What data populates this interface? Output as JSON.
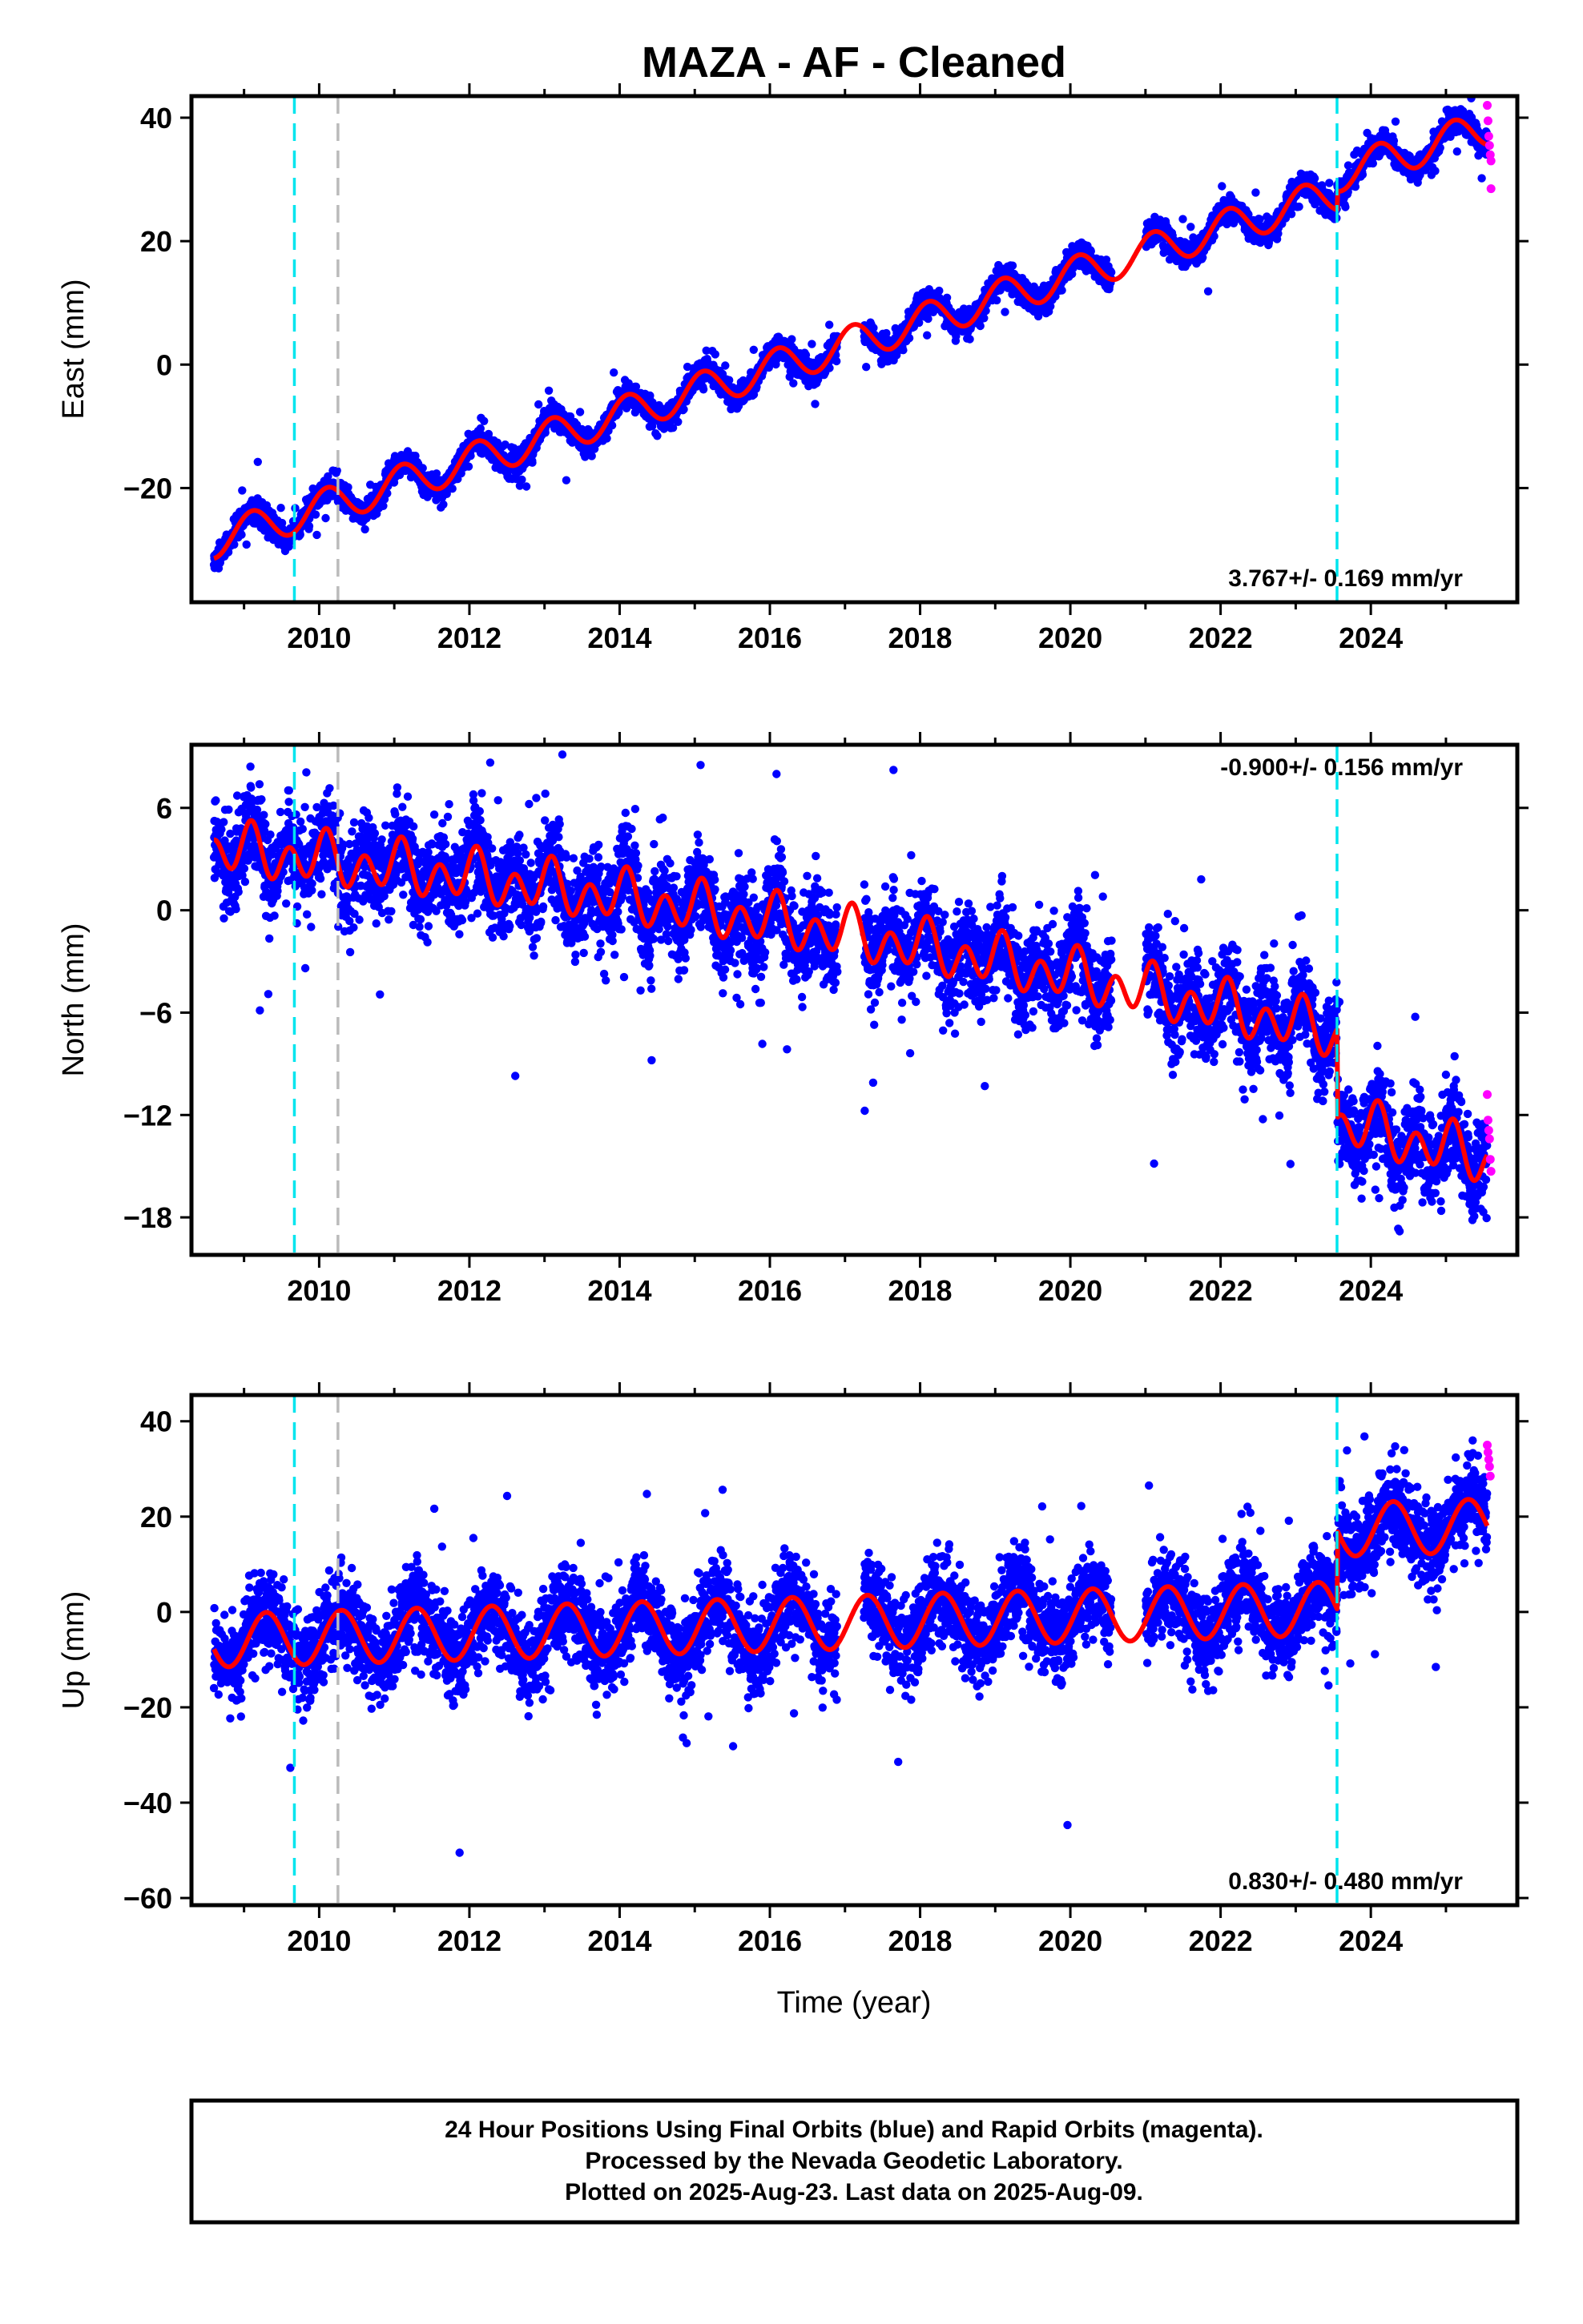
{
  "title": "MAZA  - AF - Cleaned",
  "x_axis_label": "Time (year)",
  "footer": {
    "line1": "24 Hour Positions Using Final Orbits (blue) and Rapid Orbits (magenta).",
    "line2": "Processed by the Nevada Geodetic Laboratory.",
    "line3": "Plotted on 2025-Aug-23. Last data on 2025-Aug-09."
  },
  "colors": {
    "final_orbits": "#0000ff",
    "rapid_orbits": "#ff00ff",
    "model": "#ff0000",
    "event_cyan": "#00e5ee",
    "event_gray": "#bbbbbb"
  },
  "chart_data": [
    {
      "type": "scatter",
      "component": "East",
      "ylabel": "East (mm)",
      "xlim": [
        2008.3,
        2025.95
      ],
      "ylim": [
        -38.5,
        43.5
      ],
      "x_ticks": [
        2010,
        2012,
        2014,
        2016,
        2018,
        2020,
        2022,
        2024
      ],
      "x_tick_labels": [
        "2010",
        "2012",
        "2014",
        "2016",
        "2018",
        "2020",
        "2022",
        "2024"
      ],
      "y_ticks": [
        -20,
        0,
        20,
        40
      ],
      "y_tick_labels": [
        "−20",
        "0",
        "20",
        "40"
      ],
      "rate_text": "3.767+/- 0.169 mm/yr",
      "rate_position": "bottom-right",
      "event_lines": [
        {
          "x": 2009.67,
          "color": "cyan"
        },
        {
          "x": 2010.25,
          "color": "gray"
        },
        {
          "x": 2023.55,
          "color": "cyan"
        }
      ],
      "model": {
        "x0": 2008.6,
        "intercept": -28.5,
        "rate": 3.767,
        "amp_annual": 2.9,
        "phase_annual": 0.9,
        "amp_semiannual": 0.0,
        "phase_semiannual": 0.0,
        "offsets": [
          {
            "x": 2023.55,
            "size": 3.0
          }
        ]
      },
      "scatter_noise": 1.0,
      "outlier_rate": 0.02,
      "gaps": [
        [
          2016.9,
          2017.25
        ],
        [
          2020.55,
          2021.0
        ]
      ],
      "rapid_points": [
        {
          "x": 2025.55,
          "y": 42.0
        },
        {
          "x": 2025.56,
          "y": 39.5
        },
        {
          "x": 2025.57,
          "y": 37.0
        },
        {
          "x": 2025.58,
          "y": 35.5
        },
        {
          "x": 2025.59,
          "y": 34.0
        },
        {
          "x": 2025.6,
          "y": 33.0
        },
        {
          "x": 2025.6,
          "y": 28.5
        }
      ]
    },
    {
      "type": "scatter",
      "component": "North",
      "ylabel": "North (mm)",
      "xlim": [
        2008.3,
        2025.95
      ],
      "ylim": [
        -20.2,
        9.7
      ],
      "x_ticks": [
        2010,
        2012,
        2014,
        2016,
        2018,
        2020,
        2022,
        2024
      ],
      "x_tick_labels": [
        "2010",
        "2012",
        "2014",
        "2016",
        "2018",
        "2020",
        "2022",
        "2024"
      ],
      "y_ticks": [
        -18,
        -12,
        -6,
        0,
        6
      ],
      "y_tick_labels": [
        "−18",
        "−12",
        "−6",
        "0",
        "6"
      ],
      "rate_text": "-0.900+/- 0.156 mm/yr",
      "rate_position": "top-right",
      "event_lines": [
        {
          "x": 2009.67,
          "color": "cyan"
        },
        {
          "x": 2010.25,
          "color": "gray"
        },
        {
          "x": 2023.55,
          "color": "cyan"
        }
      ],
      "model": {
        "x0": 2008.6,
        "intercept": 3.6,
        "rate": -0.42,
        "quad": -0.0205,
        "amp_annual": 0.7,
        "phase_annual": 1.2,
        "amp_semiannual": 1.2,
        "phase_semiannual": 0.3,
        "offsets": [
          {
            "x": 2023.55,
            "size": -5.2
          }
        ]
      },
      "scatter_noise": 1.3,
      "outlier_rate": 0.03,
      "gaps": [
        [
          2016.9,
          2017.25
        ],
        [
          2020.55,
          2021.0
        ]
      ],
      "rapid_points": [
        {
          "x": 2025.55,
          "y": -10.8
        },
        {
          "x": 2025.56,
          "y": -12.3
        },
        {
          "x": 2025.57,
          "y": -12.9
        },
        {
          "x": 2025.58,
          "y": -13.4
        },
        {
          "x": 2025.59,
          "y": -14.6
        },
        {
          "x": 2025.6,
          "y": -15.3
        }
      ]
    },
    {
      "type": "scatter",
      "component": "Up",
      "ylabel": "Up (mm)",
      "xlim": [
        2008.3,
        2025.95
      ],
      "ylim": [
        -61.5,
        45.5
      ],
      "x_ticks": [
        2010,
        2012,
        2014,
        2016,
        2018,
        2020,
        2022,
        2024
      ],
      "x_tick_labels": [
        "2010",
        "2012",
        "2014",
        "2016",
        "2018",
        "2020",
        "2022",
        "2024"
      ],
      "y_ticks": [
        -60,
        -40,
        -20,
        0,
        20,
        40
      ],
      "y_tick_labels": [
        "−60",
        "−40",
        "−20",
        "0",
        "20",
        "40"
      ],
      "rate_text": "0.830+/- 0.480 mm/yr",
      "rate_position": "bottom-right",
      "event_lines": [
        {
          "x": 2009.67,
          "color": "cyan"
        },
        {
          "x": 2010.25,
          "color": "gray"
        },
        {
          "x": 2023.55,
          "color": "cyan"
        }
      ],
      "model": {
        "x0": 2008.6,
        "intercept": -6.0,
        "rate": 0.45,
        "amp_annual": 5.6,
        "phase_annual": -0.3,
        "amp_semiannual": 0.0,
        "phase_semiannual": 0.0,
        "offsets": [
          {
            "x": 2023.55,
            "size": 16.5
          }
        ]
      },
      "scatter_noise": 4.5,
      "outlier_rate": 0.02,
      "gaps": [
        [
          2016.9,
          2017.25
        ],
        [
          2020.55,
          2021.0
        ]
      ],
      "rapid_points": [
        {
          "x": 2025.55,
          "y": 35.0
        },
        {
          "x": 2025.56,
          "y": 33.5
        },
        {
          "x": 2025.57,
          "y": 32.0
        },
        {
          "x": 2025.58,
          "y": 30.5
        },
        {
          "x": 2025.59,
          "y": 28.5
        }
      ]
    }
  ]
}
